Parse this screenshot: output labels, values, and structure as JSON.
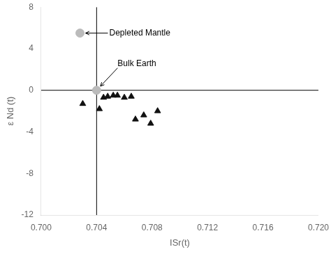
{
  "chart_data": {
    "type": "scatter",
    "xlabel": "ISr(t)",
    "ylabel": "ε Nd (t)",
    "xlim": [
      0.7,
      0.72
    ],
    "ylim": [
      -12,
      8
    ],
    "xticks": [
      {
        "value": 0.7,
        "label": "0.700"
      },
      0.704,
      0.708,
      0.712,
      0.716,
      {
        "value": 0.72,
        "label": "0.720"
      }
    ],
    "yticks": [
      -12,
      -8,
      -4,
      0,
      4,
      8
    ],
    "grid": false,
    "series": [
      {
        "marker": "triangle",
        "color": "#111111",
        "x": [
          0.703,
          0.7042,
          0.7045,
          0.7048,
          0.7052,
          0.7055,
          0.706,
          0.7065,
          0.7068,
          0.7074,
          0.7079,
          0.7084
        ],
        "values": [
          -1.3,
          -1.8,
          -0.7,
          -0.6,
          -0.5,
          -0.5,
          -0.7,
          -0.6,
          -2.8,
          -2.4,
          -3.2,
          -2.0
        ]
      },
      {
        "marker": "circle",
        "color": "#bbbbbb",
        "x": [
          0.704
        ],
        "values": [
          0.0
        ]
      },
      {
        "marker": "circle",
        "color": "#bbbbbb",
        "x": [
          0.7028
        ],
        "values": [
          5.5
        ]
      }
    ],
    "reference_lines": [
      {
        "axis": "x",
        "value": 0.704,
        "color": "#000000"
      },
      {
        "axis": "y",
        "value": 0.0,
        "color": "#000000"
      }
    ],
    "annotations": [
      {
        "text": "Depleted Mantle",
        "x": 0.7028,
        "y": 5.5
      },
      {
        "text": "Bulk Earth",
        "x": 0.704,
        "y": 0.0
      }
    ]
  }
}
